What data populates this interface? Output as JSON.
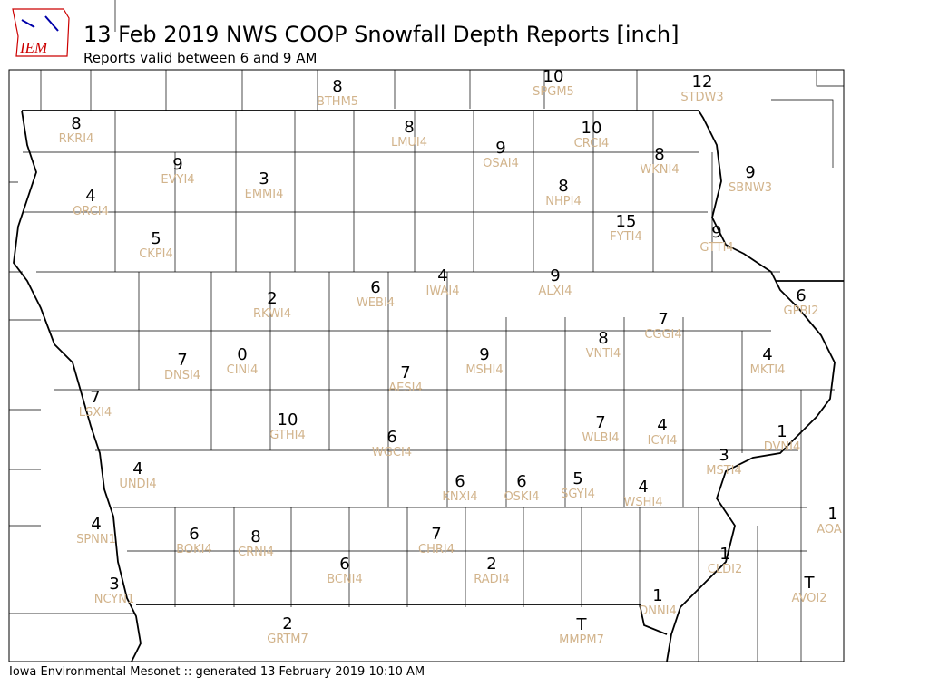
{
  "logo": "IEM",
  "header": {
    "title": "13 Feb 2019 NWS COOP Snowfall Depth Reports [inch]",
    "subtitle": "Reports valid between 6 and 9 AM"
  },
  "footer": "Iowa Environmental Mesonet :: generated 13 February 2019 10:10 AM",
  "stations": [
    {
      "value": 8,
      "id": "BTHM5"
    },
    {
      "value": 10,
      "id": "SPGM5"
    },
    {
      "value": 12,
      "id": "STDW3"
    },
    {
      "value": 8,
      "id": "RKRI4"
    },
    {
      "value": 8,
      "id": "LMUI4"
    },
    {
      "value": 10,
      "id": "CRCI4"
    },
    {
      "value": 9,
      "id": "OSAI4"
    },
    {
      "value": 8,
      "id": "WKNI4"
    },
    {
      "value": 9,
      "id": "EVYI4"
    },
    {
      "value": 3,
      "id": "EMMI4"
    },
    {
      "value": 9,
      "id": "SBNW3"
    },
    {
      "value": 4,
      "id": "ORCI4"
    },
    {
      "value": 8,
      "id": "NHPI4"
    },
    {
      "value": 15,
      "id": "FYTI4"
    },
    {
      "value": 9,
      "id": "GTTI4"
    },
    {
      "value": 5,
      "id": "CKPI4"
    },
    {
      "value": 9,
      "id": "ALXI4"
    },
    {
      "value": 4,
      "id": "IWAI4"
    },
    {
      "value": 6,
      "id": "WEBI4"
    },
    {
      "value": 2,
      "id": "RKWI4"
    },
    {
      "value": 6,
      "id": "GPBI2"
    },
    {
      "value": 7,
      "id": "CGGI4"
    },
    {
      "value": 8,
      "id": "VNTI4"
    },
    {
      "value": 9,
      "id": "MSHI4"
    },
    {
      "value": 4,
      "id": "MKTI4"
    },
    {
      "value": 7,
      "id": "DNSI4"
    },
    {
      "value": 0,
      "id": "CINI4"
    },
    {
      "value": 7,
      "id": "AESI4"
    },
    {
      "value": 7,
      "id": "LSXI4"
    },
    {
      "value": 10,
      "id": "GTHI4"
    },
    {
      "value": 7,
      "id": "WLBI4"
    },
    {
      "value": 4,
      "id": "ICYI4"
    },
    {
      "value": 6,
      "id": "WGCI4"
    },
    {
      "value": 1,
      "id": "DVNI4"
    },
    {
      "value": 3,
      "id": "MSTI4"
    },
    {
      "value": 4,
      "id": "UNDI4"
    },
    {
      "value": 6,
      "id": "KNXI4"
    },
    {
      "value": 6,
      "id": "OSKI4"
    },
    {
      "value": 5,
      "id": "SGYI4"
    },
    {
      "value": 4,
      "id": "WSHI4"
    },
    {
      "value": 1,
      "id": "AOA"
    },
    {
      "value": 4,
      "id": "SPNN1"
    },
    {
      "value": 6,
      "id": "BOKI4"
    },
    {
      "value": 8,
      "id": "CRNI4"
    },
    {
      "value": 7,
      "id": "CHRI4"
    },
    {
      "value": 1,
      "id": "CLDI2"
    },
    {
      "value": 6,
      "id": "BCNI4"
    },
    {
      "value": 2,
      "id": "RADI4"
    },
    {
      "value": "T",
      "id": "AVOI2"
    },
    {
      "value": 3,
      "id": "NCYN1"
    },
    {
      "value": 1,
      "id": "DNNI4"
    },
    {
      "value": "T",
      "id": "MMPM7"
    },
    {
      "value": 2,
      "id": "GRTM7"
    }
  ]
}
